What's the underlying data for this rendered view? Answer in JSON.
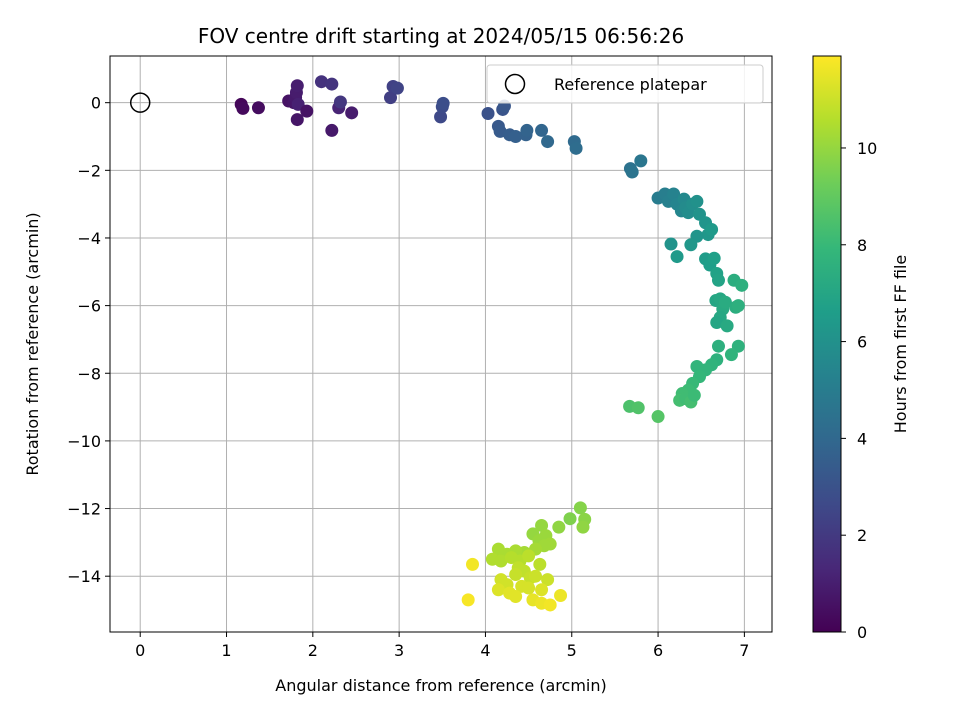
{
  "chart_data": {
    "type": "scatter",
    "title": "FOV centre drift starting at 2024/05/15 06:56:26",
    "xlabel": "Angular distance from reference (arcmin)",
    "ylabel": "Rotation from reference (arcmin)",
    "xlim": [
      -0.35,
      7.32
    ],
    "ylim": [
      -15.65,
      1.38
    ],
    "xticks": [
      0,
      1,
      2,
      3,
      4,
      5,
      6,
      7
    ],
    "yticks": [
      0,
      -2,
      -4,
      -6,
      -8,
      -10,
      -12,
      -14
    ],
    "grid": true,
    "legend": {
      "location": "top-right",
      "entries": [
        "Reference platepar"
      ]
    },
    "reference_point": {
      "x": 0,
      "y": 0,
      "label": "Reference platepar"
    },
    "colorbar": {
      "label": "Hours from first FF file",
      "colormap": "viridis",
      "range": [
        0,
        11.9
      ],
      "ticks": [
        0,
        2,
        4,
        6,
        8,
        10
      ]
    },
    "points": [
      {
        "x": 1.17,
        "y": -0.05,
        "c": 0.2
      },
      {
        "x": 1.19,
        "y": -0.17,
        "c": 0.3
      },
      {
        "x": 1.37,
        "y": -0.15,
        "c": 0.4
      },
      {
        "x": 1.72,
        "y": 0.05,
        "c": 0.6
      },
      {
        "x": 1.78,
        "y": 0.0,
        "c": 0.7
      },
      {
        "x": 1.8,
        "y": 0.15,
        "c": 0.8
      },
      {
        "x": 1.81,
        "y": 0.3,
        "c": 0.9
      },
      {
        "x": 1.82,
        "y": 0.5,
        "c": 1.0
      },
      {
        "x": 1.83,
        "y": -0.05,
        "c": 1.1
      },
      {
        "x": 1.82,
        "y": -0.5,
        "c": 0.7
      },
      {
        "x": 1.93,
        "y": -0.25,
        "c": 0.6
      },
      {
        "x": 2.3,
        "y": -0.15,
        "c": 1.2
      },
      {
        "x": 2.22,
        "y": -0.82,
        "c": 0.8
      },
      {
        "x": 2.45,
        "y": -0.3,
        "c": 0.9
      },
      {
        "x": 2.32,
        "y": 0.02,
        "c": 1.9
      },
      {
        "x": 2.1,
        "y": 0.62,
        "c": 1.7
      },
      {
        "x": 2.22,
        "y": 0.55,
        "c": 1.8
      },
      {
        "x": 2.9,
        "y": 0.15,
        "c": 2.2
      },
      {
        "x": 2.93,
        "y": 0.48,
        "c": 2.3
      },
      {
        "x": 2.98,
        "y": 0.43,
        "c": 2.4
      },
      {
        "x": 3.48,
        "y": -0.42,
        "c": 2.6
      },
      {
        "x": 3.5,
        "y": -0.12,
        "c": 2.7
      },
      {
        "x": 3.51,
        "y": -0.02,
        "c": 2.8
      },
      {
        "x": 4.03,
        "y": -0.32,
        "c": 3.0
      },
      {
        "x": 4.2,
        "y": -0.2,
        "c": 3.1
      },
      {
        "x": 4.22,
        "y": -0.1,
        "c": 3.2
      },
      {
        "x": 4.15,
        "y": -0.7,
        "c": 3.3
      },
      {
        "x": 4.17,
        "y": -0.85,
        "c": 3.4
      },
      {
        "x": 4.28,
        "y": -0.95,
        "c": 3.5
      },
      {
        "x": 4.35,
        "y": -1.0,
        "c": 3.6
      },
      {
        "x": 4.47,
        "y": -0.95,
        "c": 3.7
      },
      {
        "x": 4.48,
        "y": -0.82,
        "c": 3.8
      },
      {
        "x": 4.65,
        "y": -0.82,
        "c": 3.9
      },
      {
        "x": 4.72,
        "y": -1.15,
        "c": 4.0
      },
      {
        "x": 5.03,
        "y": -1.15,
        "c": 4.1
      },
      {
        "x": 5.05,
        "y": -1.35,
        "c": 4.2
      },
      {
        "x": 5.68,
        "y": -1.95,
        "c": 4.5
      },
      {
        "x": 5.7,
        "y": -2.05,
        "c": 4.6
      },
      {
        "x": 5.8,
        "y": -1.72,
        "c": 4.7
      },
      {
        "x": 6.0,
        "y": -2.82,
        "c": 5.0
      },
      {
        "x": 6.08,
        "y": -2.7,
        "c": 5.1
      },
      {
        "x": 6.12,
        "y": -2.92,
        "c": 5.2
      },
      {
        "x": 6.18,
        "y": -2.7,
        "c": 5.3
      },
      {
        "x": 6.22,
        "y": -3.0,
        "c": 5.4
      },
      {
        "x": 6.27,
        "y": -3.2,
        "c": 5.5
      },
      {
        "x": 6.3,
        "y": -2.85,
        "c": 5.6
      },
      {
        "x": 6.32,
        "y": -3.1,
        "c": 5.7
      },
      {
        "x": 6.35,
        "y": -3.25,
        "c": 5.8
      },
      {
        "x": 6.4,
        "y": -3.0,
        "c": 5.9
      },
      {
        "x": 6.45,
        "y": -2.92,
        "c": 6.0
      },
      {
        "x": 6.48,
        "y": -3.3,
        "c": 6.1
      },
      {
        "x": 6.55,
        "y": -3.55,
        "c": 6.2
      },
      {
        "x": 6.58,
        "y": -3.9,
        "c": 6.3
      },
      {
        "x": 6.62,
        "y": -3.75,
        "c": 6.4
      },
      {
        "x": 6.45,
        "y": -3.95,
        "c": 6.2
      },
      {
        "x": 6.38,
        "y": -4.2,
        "c": 6.3
      },
      {
        "x": 6.15,
        "y": -4.18,
        "c": 6.1
      },
      {
        "x": 6.22,
        "y": -4.55,
        "c": 6.4
      },
      {
        "x": 6.55,
        "y": -4.62,
        "c": 6.5
      },
      {
        "x": 6.6,
        "y": -4.8,
        "c": 6.6
      },
      {
        "x": 6.65,
        "y": -4.6,
        "c": 6.7
      },
      {
        "x": 6.68,
        "y": -5.05,
        "c": 6.8
      },
      {
        "x": 6.7,
        "y": -5.25,
        "c": 6.9
      },
      {
        "x": 6.67,
        "y": -5.85,
        "c": 7.0
      },
      {
        "x": 6.72,
        "y": -5.8,
        "c": 7.1
      },
      {
        "x": 6.75,
        "y": -6.1,
        "c": 7.2
      },
      {
        "x": 6.72,
        "y": -6.35,
        "c": 7.1
      },
      {
        "x": 6.68,
        "y": -6.5,
        "c": 7.0
      },
      {
        "x": 6.8,
        "y": -6.6,
        "c": 7.2
      },
      {
        "x": 6.78,
        "y": -5.9,
        "c": 7.3
      },
      {
        "x": 6.88,
        "y": -5.25,
        "c": 7.4
      },
      {
        "x": 6.97,
        "y": -5.4,
        "c": 7.5
      },
      {
        "x": 6.9,
        "y": -6.05,
        "c": 7.4
      },
      {
        "x": 6.93,
        "y": -6.0,
        "c": 7.5
      },
      {
        "x": 6.93,
        "y": -7.2,
        "c": 7.6
      },
      {
        "x": 6.7,
        "y": -7.2,
        "c": 7.5
      },
      {
        "x": 6.85,
        "y": -7.45,
        "c": 7.7
      },
      {
        "x": 6.68,
        "y": -7.6,
        "c": 7.6
      },
      {
        "x": 6.62,
        "y": -7.75,
        "c": 7.7
      },
      {
        "x": 6.55,
        "y": -7.9,
        "c": 7.8
      },
      {
        "x": 6.45,
        "y": -7.8,
        "c": 7.8
      },
      {
        "x": 6.48,
        "y": -8.1,
        "c": 7.9
      },
      {
        "x": 6.4,
        "y": -8.3,
        "c": 8.0
      },
      {
        "x": 6.35,
        "y": -8.5,
        "c": 8.1
      },
      {
        "x": 6.28,
        "y": -8.6,
        "c": 8.2
      },
      {
        "x": 6.25,
        "y": -8.8,
        "c": 8.3
      },
      {
        "x": 6.32,
        "y": -8.75,
        "c": 8.2
      },
      {
        "x": 6.38,
        "y": -8.85,
        "c": 8.3
      },
      {
        "x": 6.42,
        "y": -8.65,
        "c": 8.1
      },
      {
        "x": 5.67,
        "y": -8.98,
        "c": 8.5
      },
      {
        "x": 5.77,
        "y": -9.02,
        "c": 8.6
      },
      {
        "x": 6.0,
        "y": -9.28,
        "c": 8.7
      },
      {
        "x": 4.98,
        "y": -12.3,
        "c": 9.6
      },
      {
        "x": 5.1,
        "y": -11.98,
        "c": 9.7
      },
      {
        "x": 5.15,
        "y": -12.32,
        "c": 9.8
      },
      {
        "x": 5.13,
        "y": -12.55,
        "c": 9.9
      },
      {
        "x": 4.85,
        "y": -12.55,
        "c": 9.9
      },
      {
        "x": 4.65,
        "y": -12.5,
        "c": 10.0
      },
      {
        "x": 4.55,
        "y": -12.75,
        "c": 10.0
      },
      {
        "x": 4.62,
        "y": -12.95,
        "c": 10.1
      },
      {
        "x": 4.7,
        "y": -12.8,
        "c": 10.1
      },
      {
        "x": 4.75,
        "y": -13.05,
        "c": 10.2
      },
      {
        "x": 4.68,
        "y": -13.1,
        "c": 10.2
      },
      {
        "x": 4.58,
        "y": -13.2,
        "c": 10.3
      },
      {
        "x": 4.45,
        "y": -13.3,
        "c": 10.3
      },
      {
        "x": 4.35,
        "y": -13.25,
        "c": 10.4
      },
      {
        "x": 4.25,
        "y": -13.35,
        "c": 10.4
      },
      {
        "x": 4.15,
        "y": -13.2,
        "c": 10.4
      },
      {
        "x": 4.08,
        "y": -13.5,
        "c": 10.5
      },
      {
        "x": 4.18,
        "y": -13.55,
        "c": 10.5
      },
      {
        "x": 4.3,
        "y": -13.45,
        "c": 10.6
      },
      {
        "x": 4.4,
        "y": -13.55,
        "c": 10.6
      },
      {
        "x": 4.5,
        "y": -13.4,
        "c": 10.7
      },
      {
        "x": 4.63,
        "y": -13.65,
        "c": 10.7
      },
      {
        "x": 4.38,
        "y": -13.75,
        "c": 10.8
      },
      {
        "x": 4.45,
        "y": -13.85,
        "c": 10.8
      },
      {
        "x": 4.35,
        "y": -13.95,
        "c": 10.9
      },
      {
        "x": 4.52,
        "y": -14.05,
        "c": 10.9
      },
      {
        "x": 4.58,
        "y": -14.0,
        "c": 11.0
      },
      {
        "x": 4.72,
        "y": -14.1,
        "c": 11.0
      },
      {
        "x": 4.18,
        "y": -14.1,
        "c": 11.1
      },
      {
        "x": 4.25,
        "y": -14.25,
        "c": 11.1
      },
      {
        "x": 4.42,
        "y": -14.3,
        "c": 11.2
      },
      {
        "x": 4.5,
        "y": -14.35,
        "c": 11.2
      },
      {
        "x": 4.65,
        "y": -14.4,
        "c": 11.3
      },
      {
        "x": 4.15,
        "y": -14.4,
        "c": 11.3
      },
      {
        "x": 4.28,
        "y": -14.5,
        "c": 11.4
      },
      {
        "x": 4.35,
        "y": -14.6,
        "c": 11.4
      },
      {
        "x": 4.55,
        "y": -14.7,
        "c": 11.5
      },
      {
        "x": 4.65,
        "y": -14.8,
        "c": 11.6
      },
      {
        "x": 4.75,
        "y": -14.85,
        "c": 11.7
      },
      {
        "x": 4.87,
        "y": -14.57,
        "c": 11.6
      },
      {
        "x": 3.85,
        "y": -13.65,
        "c": 11.7
      },
      {
        "x": 3.8,
        "y": -14.7,
        "c": 11.8
      }
    ]
  }
}
